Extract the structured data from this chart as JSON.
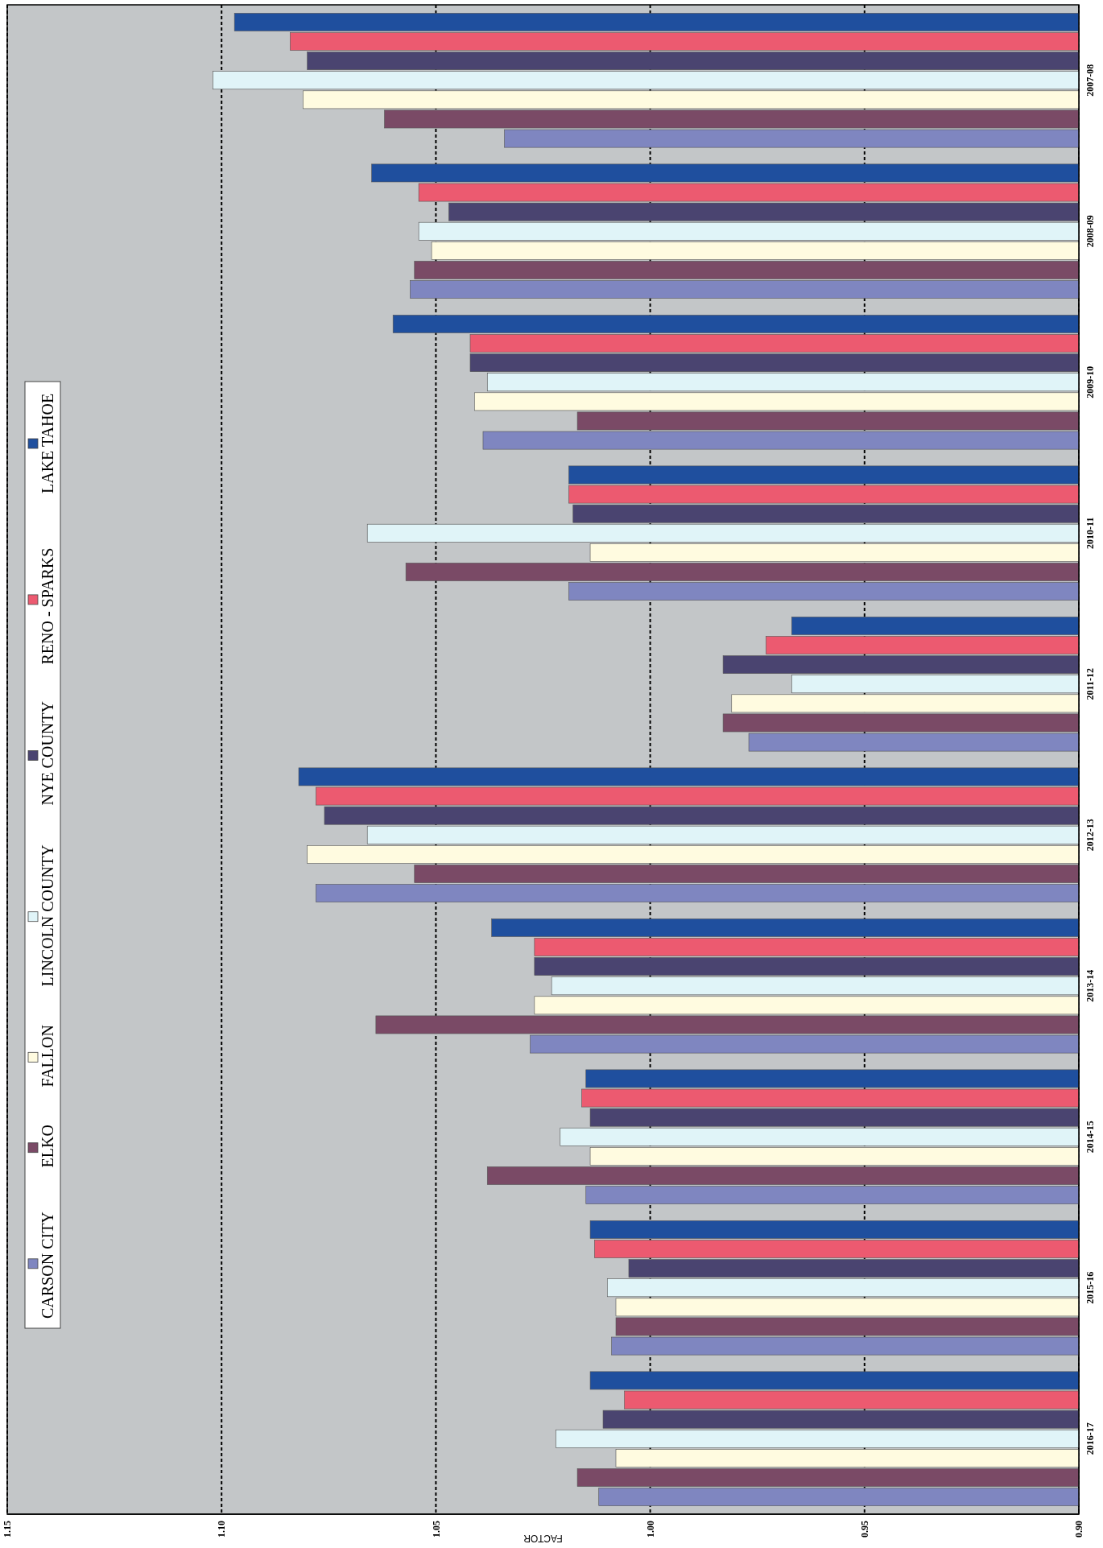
{
  "chart_data": {
    "type": "bar",
    "orientation": "horizontal",
    "xlabel": "FACTOR",
    "categories": [
      "2007-08",
      "2008-09",
      "2009-10",
      "2010-11",
      "2011-12",
      "2012-13",
      "2013-14",
      "2014-15",
      "2015-16",
      "2016-17"
    ],
    "series": [
      {
        "name": "CARSON CITY",
        "color": "#7f86c0",
        "values": [
          1.034,
          1.056,
          1.039,
          1.019,
          0.977,
          1.078,
          1.028,
          1.015,
          1.009,
          1.012
        ]
      },
      {
        "name": "ELKO",
        "color": "#7a4a66",
        "values": [
          1.062,
          1.055,
          1.017,
          1.057,
          0.983,
          1.055,
          1.064,
          1.038,
          1.008,
          1.017
        ]
      },
      {
        "name": "FALLON",
        "color": "#fffbe0",
        "values": [
          1.081,
          1.051,
          1.041,
          1.014,
          0.981,
          1.08,
          1.027,
          1.014,
          1.008,
          1.008
        ]
      },
      {
        "name": "LINCOLN COUNTY",
        "color": "#e0f4f8",
        "values": [
          1.102,
          1.054,
          1.038,
          1.066,
          0.967,
          1.066,
          1.023,
          1.021,
          1.01,
          1.022
        ]
      },
      {
        "name": "NYE COUNTY",
        "color": "#4a4470",
        "values": [
          1.08,
          1.047,
          1.042,
          1.018,
          0.983,
          1.076,
          1.027,
          1.014,
          1.005,
          1.011
        ]
      },
      {
        "name": "RENO - SPARKS",
        "color": "#ec5a70",
        "values": [
          1.084,
          1.054,
          1.042,
          1.019,
          0.973,
          1.078,
          1.027,
          1.016,
          1.013,
          1.006
        ]
      },
      {
        "name": "LAKE TAHOE",
        "color": "#1f4f9e",
        "values": [
          1.097,
          1.065,
          1.06,
          1.019,
          0.967,
          1.082,
          1.037,
          1.015,
          1.014,
          1.014
        ]
      }
    ],
    "xlim": [
      1.15,
      0.9
    ],
    "xticks": [
      {
        "value": 1.15,
        "label": "1.15"
      },
      {
        "value": 1.1,
        "label": "1.10"
      },
      {
        "value": 1.05,
        "label": "1.05"
      },
      {
        "value": 1.0,
        "label": "1.00"
      },
      {
        "value": 0.95,
        "label": "0.95"
      },
      {
        "value": 0.9,
        "label": "0.90"
      }
    ],
    "grid": "x",
    "legend": "left"
  }
}
